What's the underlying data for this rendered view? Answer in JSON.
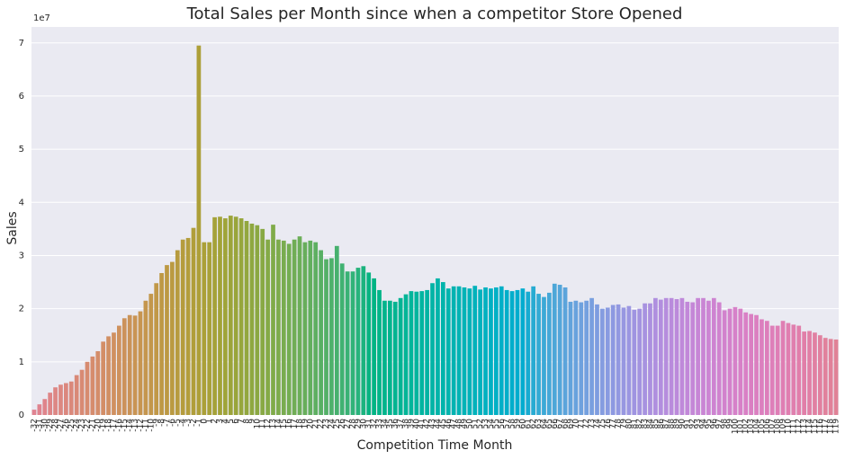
{
  "chart_data": {
    "type": "bar",
    "title": "Total Sales per Month since when a competitor Store Opened",
    "x_label": "Competition Time Month",
    "y_label": "Sales",
    "y_offset_label": "1e7",
    "palette": "husl",
    "grid": true,
    "categories": [
      -32,
      -31,
      -30,
      -29,
      -28,
      -27,
      -26,
      -25,
      -24,
      -23,
      -22,
      -21,
      -20,
      -19,
      -18,
      -17,
      -16,
      -15,
      -14,
      -13,
      -12,
      -11,
      -10,
      -9,
      -8,
      -7,
      -6,
      -5,
      -4,
      -3,
      -2,
      -1,
      0,
      1,
      2,
      3,
      4,
      5,
      6,
      7,
      8,
      9,
      10,
      11,
      12,
      13,
      14,
      15,
      16,
      17,
      18,
      19,
      20,
      21,
      22,
      23,
      24,
      25,
      26,
      27,
      28,
      29,
      30,
      31,
      32,
      33,
      34,
      35,
      36,
      37,
      38,
      39,
      40,
      41,
      42,
      43,
      44,
      45,
      46,
      47,
      48,
      49,
      50,
      51,
      52,
      53,
      54,
      55,
      56,
      57,
      58,
      59,
      60,
      61,
      62,
      63,
      64,
      65,
      66,
      67,
      68,
      69,
      70,
      71,
      72,
      73,
      74,
      75,
      76,
      77,
      78,
      79,
      80,
      81,
      82,
      83,
      84,
      85,
      86,
      87,
      88,
      89,
      90,
      91,
      92,
      93,
      94,
      95,
      96,
      97,
      98,
      99,
      100,
      101,
      102,
      103,
      104,
      105,
      106,
      107,
      108,
      109,
      110,
      111,
      112,
      113,
      114,
      115,
      116,
      117,
      118,
      119
    ],
    "values": [
      0.1,
      0.2,
      0.3,
      0.42,
      0.52,
      0.57,
      0.6,
      0.63,
      0.75,
      0.85,
      1.0,
      1.1,
      1.2,
      1.38,
      1.48,
      1.55,
      1.68,
      1.82,
      1.88,
      1.87,
      1.95,
      2.15,
      2.28,
      2.48,
      2.67,
      2.82,
      2.88,
      3.1,
      3.3,
      3.33,
      3.52,
      6.95,
      3.25,
      3.25,
      3.72,
      3.73,
      3.7,
      3.75,
      3.73,
      3.7,
      3.65,
      3.6,
      3.57,
      3.5,
      3.3,
      3.58,
      3.3,
      3.28,
      3.22,
      3.3,
      3.36,
      3.25,
      3.28,
      3.25,
      3.1,
      2.93,
      2.95,
      3.18,
      2.85,
      2.7,
      2.7,
      2.77,
      2.8,
      2.68,
      2.57,
      2.35,
      2.15,
      2.15,
      2.13,
      2.2,
      2.27,
      2.33,
      2.32,
      2.33,
      2.35,
      2.48,
      2.57,
      2.5,
      2.38,
      2.42,
      2.42,
      2.4,
      2.38,
      2.43,
      2.36,
      2.4,
      2.38,
      2.4,
      2.42,
      2.35,
      2.33,
      2.35,
      2.38,
      2.32,
      2.42,
      2.28,
      2.22,
      2.3,
      2.47,
      2.45,
      2.4,
      2.13,
      2.15,
      2.12,
      2.15,
      2.2,
      2.08,
      2.0,
      2.02,
      2.07,
      2.08,
      2.02,
      2.05,
      1.98,
      2.0,
      2.1,
      2.1,
      2.2,
      2.17,
      2.2,
      2.2,
      2.18,
      2.2,
      2.13,
      2.12,
      2.2,
      2.2,
      2.15,
      2.2,
      2.12,
      1.97,
      2.0,
      2.03,
      2.0,
      1.93,
      1.9,
      1.88,
      1.8,
      1.77,
      1.68,
      1.68,
      1.77,
      1.73,
      1.7,
      1.68,
      1.57,
      1.58,
      1.55,
      1.5,
      1.45,
      1.43,
      1.42
    ],
    "ylim": [
      0,
      7.3
    ],
    "yticks": [
      0,
      1,
      2,
      3,
      4,
      5,
      6,
      7
    ]
  }
}
